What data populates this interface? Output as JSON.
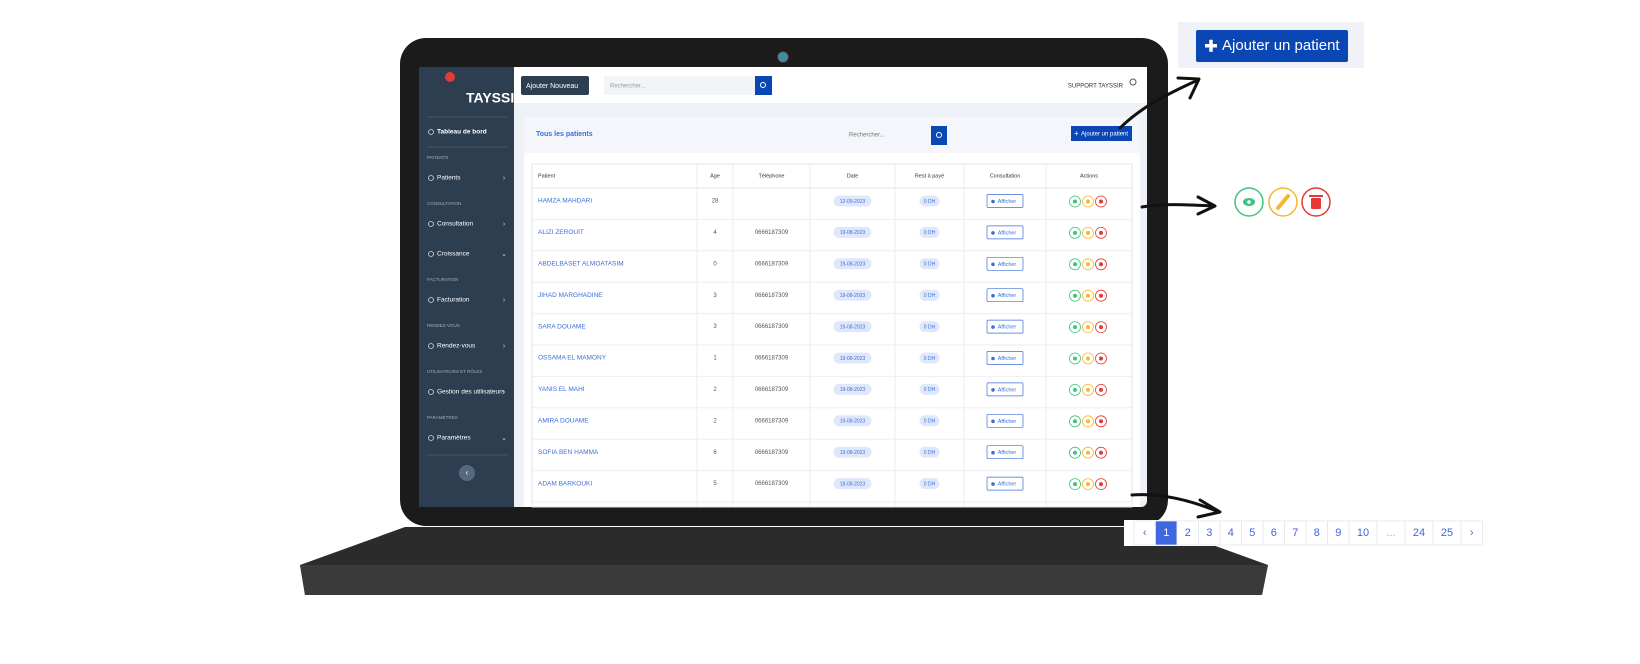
{
  "sidebar": {
    "logo": "TAYSSIR",
    "nav": [
      {
        "label": "Tableau de bord"
      },
      {
        "section": "PATIENTS",
        "label": "Patients"
      },
      {
        "section": "CONSULTATION",
        "label": "Consultation"
      },
      {
        "label": "Croissance"
      },
      {
        "section": "FACTURATION",
        "label": "Facturation"
      },
      {
        "section": "RENDEZ-VOUS",
        "label": "Rendez-vous"
      },
      {
        "section": "UTILISATEURS ET RÔLES",
        "label": "Gestion des utilisateurs"
      },
      {
        "section": "PARAMÈTRES",
        "label": "Paramètres"
      }
    ]
  },
  "topbar": {
    "add_button": "Ajouter Nouveau",
    "search_placeholder": "Rechercher...",
    "user": "SUPPORT TAYSSIR"
  },
  "card": {
    "title": "Tous les patients",
    "search_placeholder": "Rechercher...",
    "add_button": "Ajouter un patient"
  },
  "table": {
    "headers": [
      "Patient",
      "Age",
      "Téléphone",
      "Date",
      "Rest à payé",
      "Consultation",
      "Actions"
    ],
    "view_label": "Afficher",
    "rows": [
      {
        "name": "HAMZA MAHDARI",
        "age": 28,
        "date": "12-09-2023",
        "rest": "0 DH"
      },
      {
        "name": "ALIZI ZEROUIT",
        "age": 4,
        "phone": "0666187309",
        "date": "19-08-2023",
        "rest": "0 DH"
      },
      {
        "name": "ABDELBASET ALMOATASIM",
        "age": 0,
        "phone": "0666187309",
        "date": "19-08-2023",
        "rest": "0 DH"
      },
      {
        "name": "JIHAD MARGHADINE",
        "age": 3,
        "phone": "0666187309",
        "date": "19-08-2023",
        "rest": "0 DH"
      },
      {
        "name": "SARA DOUAME",
        "age": 3,
        "phone": "0666187309",
        "date": "19-08-2023",
        "rest": "0 DH"
      },
      {
        "name": "OSSAMA EL MAMONY",
        "age": 1,
        "phone": "0666187309",
        "date": "19-08-2023",
        "rest": "0 DH"
      },
      {
        "name": "YANIS EL MAHI",
        "age": 2,
        "phone": "0666187309",
        "date": "19-08-2023",
        "rest": "0 DH"
      },
      {
        "name": "AMIRA DOUAME",
        "age": 2,
        "phone": "0666187309",
        "date": "19-08-2023",
        "rest": "0 DH"
      },
      {
        "name": "SOFIA BEN HAMMA",
        "age": 6,
        "phone": "0666187309",
        "date": "19-08-2023",
        "rest": "0 DH"
      },
      {
        "name": "ADAM BARKOUKI",
        "age": 5,
        "phone": "0666187309",
        "date": "18-08-2023",
        "rest": "0 DH"
      }
    ]
  },
  "callout": {
    "add_button": "Ajouter un patient"
  },
  "pagination": [
    "‹",
    "1",
    "2",
    "3",
    "4",
    "5",
    "6",
    "7",
    "8",
    "9",
    "10",
    "...",
    "24",
    "25",
    "›"
  ]
}
